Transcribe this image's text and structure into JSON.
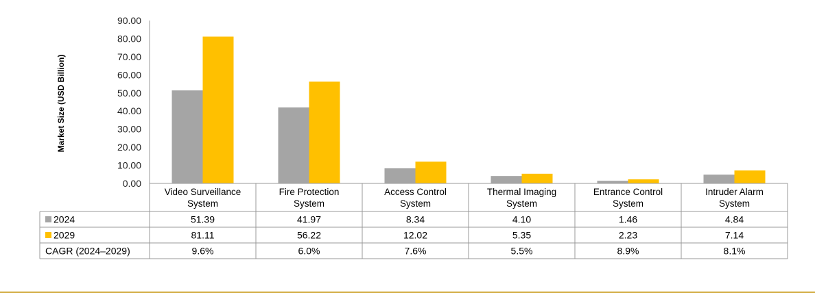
{
  "chart_data": {
    "type": "bar",
    "ylabel": "Market Size (USD Billion)",
    "ylim": [
      0,
      90
    ],
    "yticks": [
      "0.00",
      "10.00",
      "20.00",
      "30.00",
      "40.00",
      "50.00",
      "60.00",
      "70.00",
      "80.00",
      "90.00"
    ],
    "categories": [
      [
        "Video Surveillance",
        "System"
      ],
      [
        "Fire Protection",
        "System"
      ],
      [
        "Access Control",
        "System"
      ],
      [
        "Thermal Imaging",
        "System"
      ],
      [
        "Entrance Control",
        "System"
      ],
      [
        "Intruder Alarm",
        "System"
      ]
    ],
    "series": [
      {
        "name": "2024",
        "color": "#A5A5A5",
        "values": [
          51.39,
          41.97,
          8.34,
          4.1,
          1.46,
          4.84
        ],
        "labels": [
          "51.39",
          "41.97",
          "8.34",
          "4.10",
          "1.46",
          "4.84"
        ]
      },
      {
        "name": "2029",
        "color": "#FFC000",
        "values": [
          81.11,
          56.22,
          12.02,
          5.35,
          2.23,
          7.14
        ],
        "labels": [
          "81.11",
          "56.22",
          "12.02",
          "5.35",
          "2.23",
          "7.14"
        ]
      }
    ],
    "table_extra_row": {
      "label": "CAGR (2024–2029)",
      "values": [
        "9.6%",
        "6.0%",
        "7.6%",
        "5.5%",
        "8.9%",
        "8.1%"
      ]
    },
    "footer_rule_color": "#D4B04A"
  }
}
